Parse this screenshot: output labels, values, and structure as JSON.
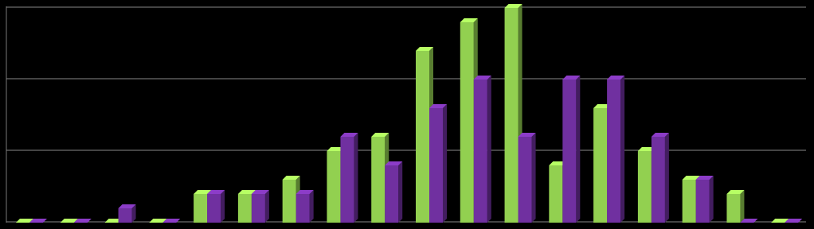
{
  "chart_data": {
    "type": "bar",
    "categories": [
      null,
      null,
      null,
      null,
      null,
      null,
      null,
      null,
      null,
      null,
      null,
      null,
      null,
      null,
      null,
      null,
      null,
      null
    ],
    "series": [
      {
        "color": "#92d050",
        "values": [
          0,
          0,
          0,
          0,
          2,
          2,
          3,
          5,
          6,
          12,
          14,
          15,
          4,
          8,
          5,
          3,
          2,
          0
        ]
      },
      {
        "color": "#7030a0",
        "values": [
          0,
          0,
          1,
          0,
          2,
          2,
          2,
          6,
          4,
          8,
          10,
          6,
          10,
          10,
          6,
          3,
          0,
          0
        ]
      }
    ],
    "ylim": [
      0,
      15
    ],
    "yticks": [
      0,
      5,
      10,
      15
    ],
    "grid": true
  }
}
